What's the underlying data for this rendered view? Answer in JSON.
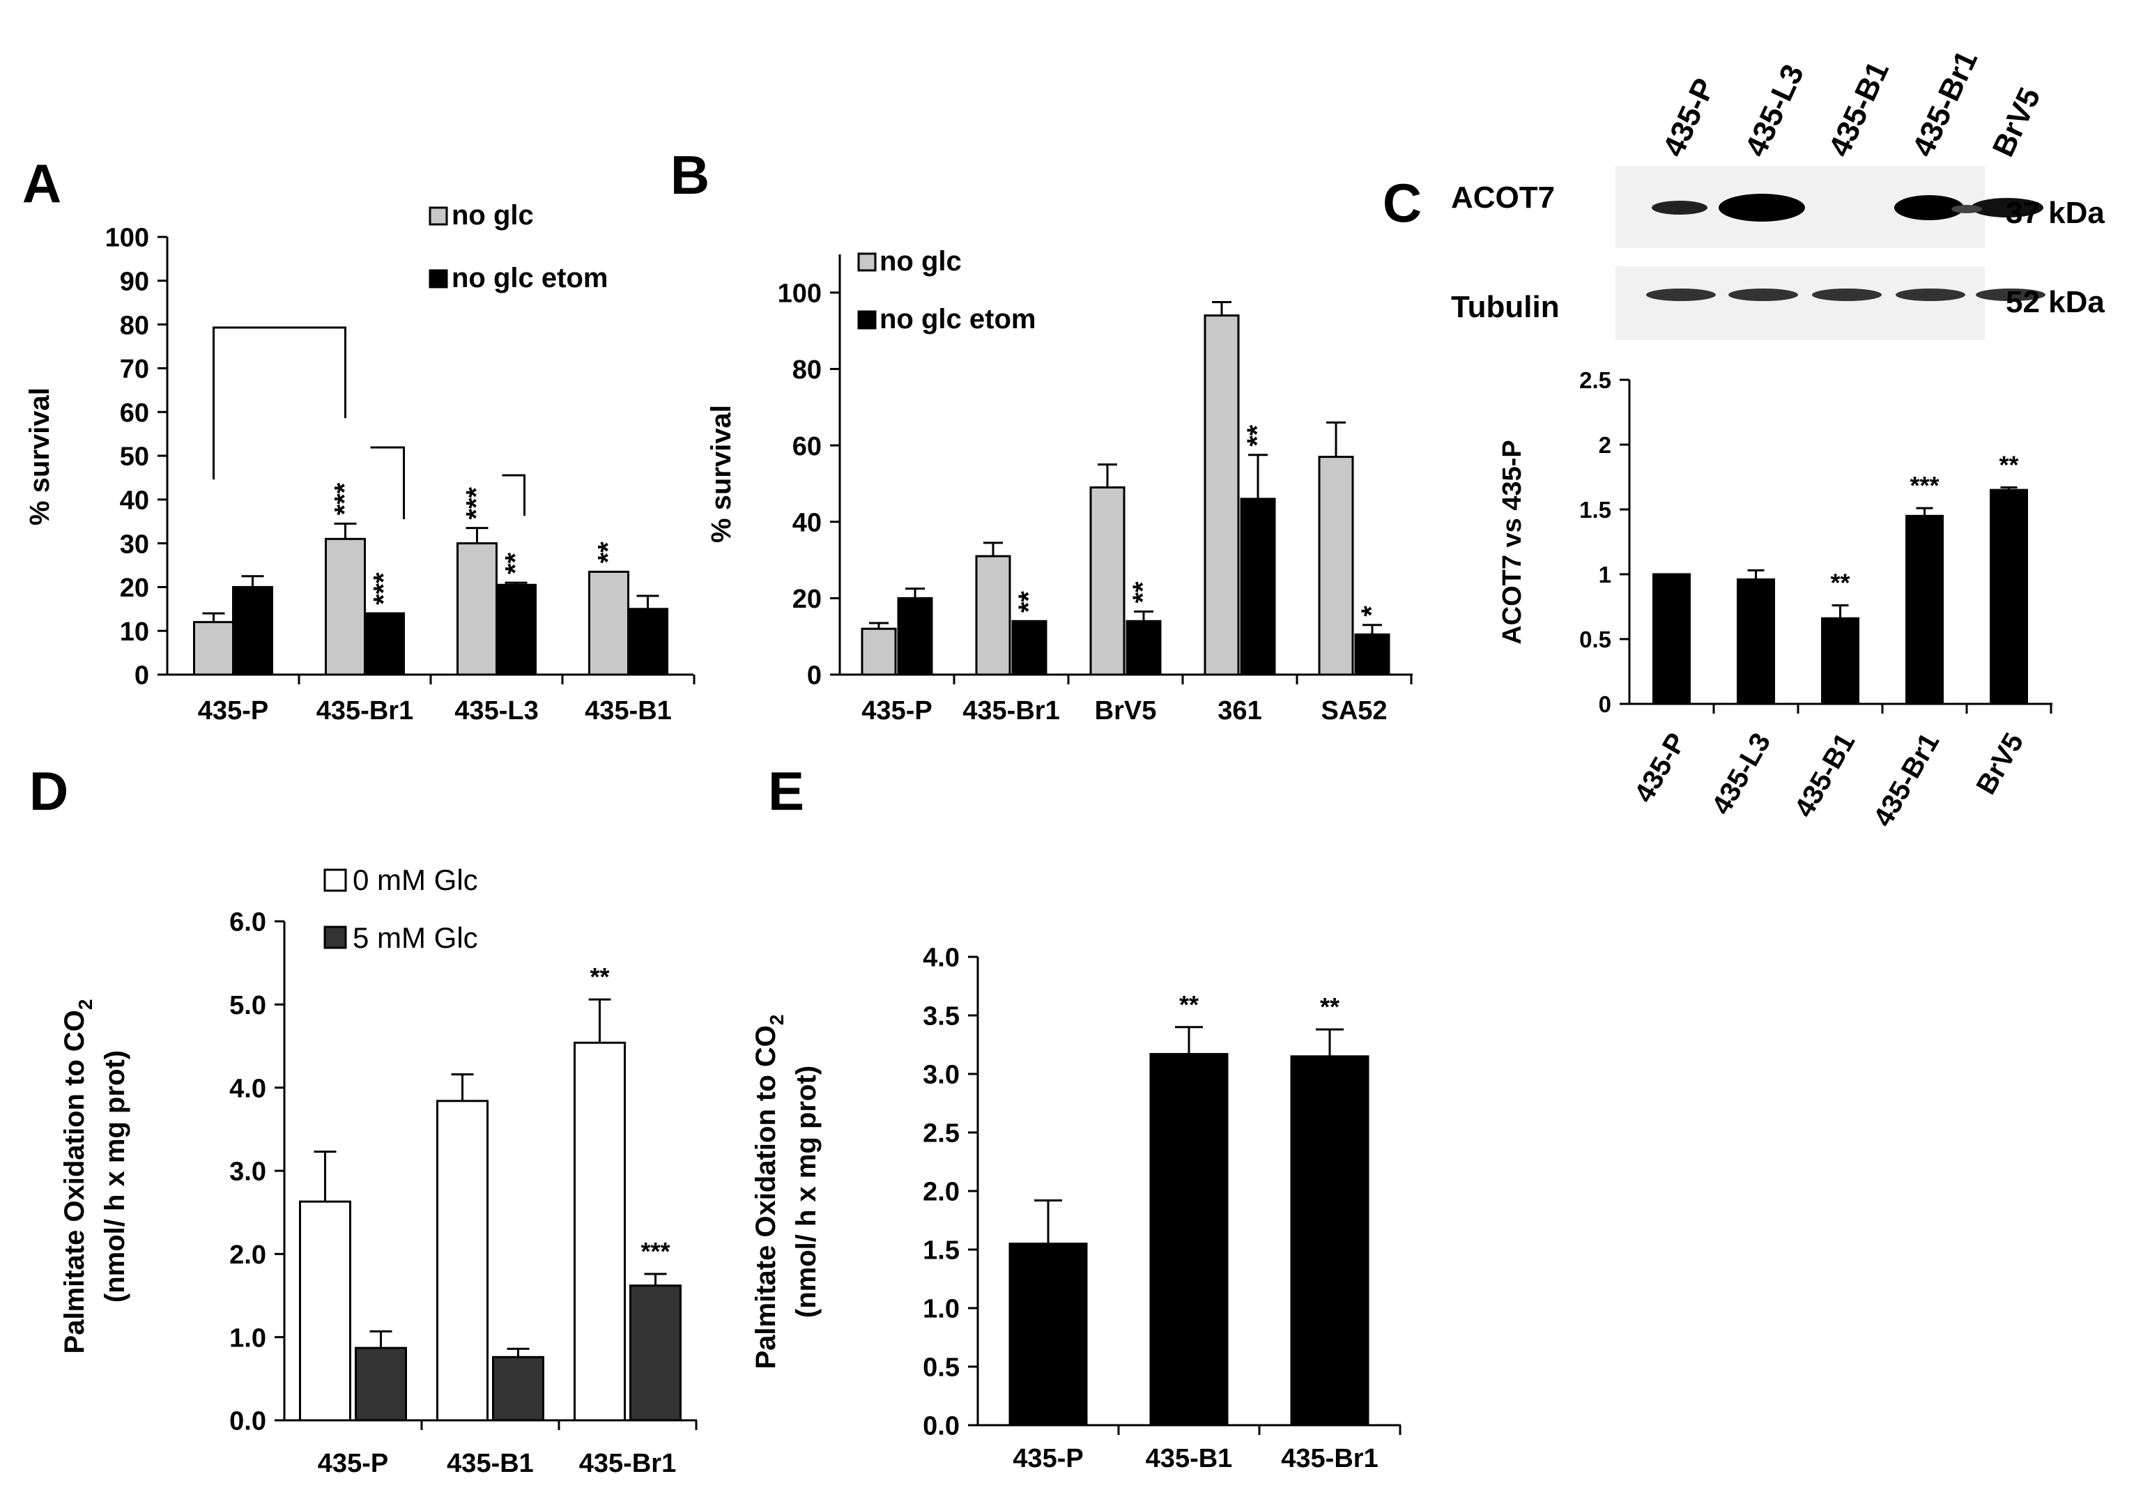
{
  "chart_data": [
    {
      "panel": "A",
      "type": "bar",
      "ylabel": "% survival",
      "ylim": [
        0,
        100
      ],
      "yticks": [
        "0",
        "10",
        "20",
        "30",
        "40",
        "50",
        "60",
        "70",
        "80",
        "90",
        "100"
      ],
      "categories": [
        "435-P",
        "435-Br1",
        "435-L3",
        "435-B1"
      ],
      "legend": [
        "no glc",
        "no glc etom"
      ],
      "series": [
        {
          "name": "no glc",
          "color": "#c8c8c8",
          "values": [
            12,
            31,
            30,
            23.5
          ],
          "errors": [
            2,
            3.5,
            3.5,
            0
          ]
        },
        {
          "name": "no glc etom",
          "color": "#000000",
          "values": [
            20,
            14,
            20.5,
            15
          ],
          "errors": [
            2.5,
            0,
            0.5,
            3
          ]
        }
      ],
      "annotations": [
        {
          "cat": 1,
          "s": 0,
          "text": "***"
        },
        {
          "cat": 1,
          "s": 1,
          "text": "***"
        },
        {
          "cat": 2,
          "s": 0,
          "text": "***"
        },
        {
          "cat": 2,
          "s": 1,
          "text": "**"
        },
        {
          "cat": 3,
          "s": 0,
          "text": "**"
        }
      ]
    },
    {
      "panel": "B",
      "type": "bar",
      "ylabel": "% survival",
      "ylim": [
        0,
        110
      ],
      "yticks": [
        "0",
        "20",
        "40",
        "60",
        "80",
        "100"
      ],
      "categories": [
        "435-P",
        "435-Br1",
        "BrV5",
        "361",
        "SA52"
      ],
      "legend": [
        "no glc",
        "no glc etom"
      ],
      "series": [
        {
          "name": "no glc",
          "color": "#c8c8c8",
          "values": [
            12,
            31,
            49,
            94,
            57
          ],
          "errors": [
            1.5,
            3.5,
            6,
            3.5,
            9
          ]
        },
        {
          "name": "no glc etom",
          "color": "#000000",
          "values": [
            20,
            14,
            14,
            46,
            10.5
          ],
          "errors": [
            2.5,
            0,
            2.5,
            11.5,
            2.5
          ]
        }
      ],
      "annotations": [
        {
          "cat": 1,
          "s": 1,
          "text": "**"
        },
        {
          "cat": 2,
          "s": 1,
          "text": "**"
        },
        {
          "cat": 3,
          "s": 1,
          "text": "**"
        },
        {
          "cat": 4,
          "s": 1,
          "text": "*"
        }
      ]
    },
    {
      "panel": "C",
      "type": "bar",
      "ylabel": "ACOT7 vs 435-P",
      "ylim": [
        0,
        2.5
      ],
      "yticks": [
        "0",
        "0.5",
        "1",
        "1.5",
        "2",
        "2.5"
      ],
      "categories": [
        "435-P",
        "435-L3",
        "435-B1",
        "435-Br1",
        "BrV5"
      ],
      "series": [
        {
          "color": "#000000",
          "values": [
            1.0,
            0.96,
            0.66,
            1.45,
            1.65
          ],
          "errors": [
            0,
            0.07,
            0.1,
            0.06,
            0.02
          ]
        }
      ],
      "annotations": [
        {
          "cat": 2,
          "s": 0,
          "text": "**"
        },
        {
          "cat": 3,
          "s": 0,
          "text": "***"
        },
        {
          "cat": 4,
          "s": 0,
          "text": "**"
        }
      ],
      "blot": {
        "lanes": [
          "435-P",
          "435-L3",
          "435-B1",
          "435-Br1",
          "BrV5"
        ],
        "rows": [
          {
            "protein": "ACOT7",
            "size": "37 kDa"
          },
          {
            "protein": "Tubulin",
            "size": "52 kDa"
          }
        ]
      }
    },
    {
      "panel": "D",
      "type": "bar",
      "ylabel_line1": "Palmitate Oxidation to CO",
      "ylabel_sub": "2",
      "ylabel_line2": "(nmol/ h x mg prot)",
      "ylim": [
        0,
        6
      ],
      "yticks": [
        "0.0",
        "1.0",
        "2.0",
        "3.0",
        "4.0",
        "5.0",
        "6.0"
      ],
      "categories": [
        "435-P",
        "435-B1",
        "435-Br1"
      ],
      "legend": [
        "0 mM Glc",
        "5 mM Glc"
      ],
      "series": [
        {
          "name": "0 mM Glc",
          "color": "#ffffff",
          "values": [
            2.63,
            3.84,
            4.54
          ],
          "errors": [
            0.6,
            0.32,
            0.52
          ]
        },
        {
          "name": "5 mM Glc",
          "color": "#333333",
          "values": [
            0.87,
            0.76,
            1.62
          ],
          "errors": [
            0.2,
            0.1,
            0.14
          ]
        }
      ],
      "annotations": [
        {
          "cat": 2,
          "s": 0,
          "text": "**"
        },
        {
          "cat": 2,
          "s": 1,
          "text": "***"
        }
      ]
    },
    {
      "panel": "E",
      "type": "bar",
      "ylabel_line1": "Palmitate Oxidation to CO",
      "ylabel_sub": "2",
      "ylabel_line2": "(nmol/ h x mg prot)",
      "ylim": [
        0,
        4
      ],
      "yticks": [
        "0.0",
        "0.5",
        "1.0",
        "1.5",
        "2.0",
        "2.5",
        "3.0",
        "3.5",
        "4.0"
      ],
      "categories": [
        "435-P",
        "435-B1",
        "435-Br1"
      ],
      "series": [
        {
          "color": "#000000",
          "values": [
            1.55,
            3.17,
            3.15
          ],
          "errors": [
            0.37,
            0.23,
            0.23
          ]
        }
      ],
      "annotations": [
        {
          "cat": 1,
          "s": 0,
          "text": "**"
        },
        {
          "cat": 2,
          "s": 0,
          "text": "**"
        }
      ]
    }
  ]
}
